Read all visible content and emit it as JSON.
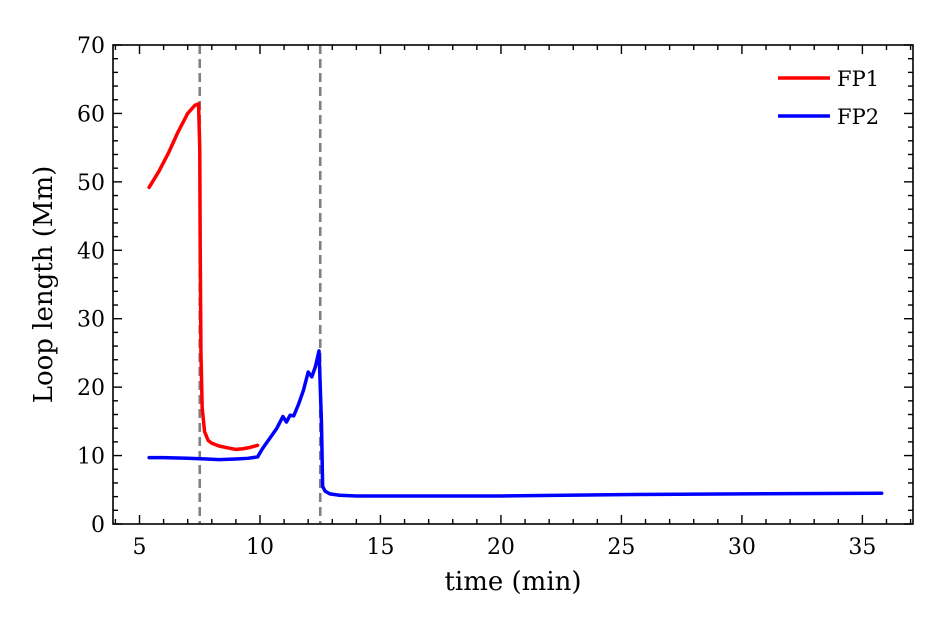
{
  "chart_data": {
    "type": "line",
    "xlabel": "time (min)",
    "ylabel": "Loop length (Mm)",
    "xlim": [
      3.9,
      37.1
    ],
    "ylim": [
      0,
      70
    ],
    "x_ticks": [
      5,
      10,
      15,
      20,
      25,
      30,
      35
    ],
    "y_ticks": [
      0,
      10,
      20,
      30,
      40,
      50,
      60,
      70
    ],
    "x_minor_step": 1,
    "y_minor_step": 2,
    "grid": false,
    "legend_position": "top-right",
    "vlines": [
      {
        "x": 7.5,
        "color": "#808080",
        "style": "dashed"
      },
      {
        "x": 12.5,
        "color": "#808080",
        "style": "dashed"
      }
    ],
    "series": [
      {
        "name": "FP1",
        "color": "#ff0000",
        "x": [
          5.4,
          5.8,
          6.2,
          6.6,
          7.0,
          7.3,
          7.45,
          7.5,
          7.52,
          7.55,
          7.6,
          7.7,
          7.85,
          8.0,
          8.3,
          8.7,
          9.0,
          9.3,
          9.6,
          9.9
        ],
        "y": [
          49.2,
          51.5,
          54.2,
          57.3,
          60.0,
          61.2,
          61.4,
          55.0,
          40.0,
          25.0,
          17.0,
          13.5,
          12.2,
          11.8,
          11.4,
          11.1,
          10.9,
          11.0,
          11.2,
          11.5
        ]
      },
      {
        "name": "FP2",
        "color": "#0000ff",
        "x": [
          5.4,
          6.0,
          7.0,
          7.8,
          8.3,
          9.0,
          9.5,
          9.9,
          10.1,
          10.4,
          10.7,
          10.95,
          11.1,
          11.25,
          11.4,
          11.6,
          11.8,
          12.0,
          12.15,
          12.3,
          12.45,
          12.55,
          12.6,
          12.7,
          12.9,
          13.3,
          14.0,
          16.0,
          20.0,
          25.0,
          30.0,
          35.8
        ],
        "y": [
          9.7,
          9.7,
          9.6,
          9.5,
          9.4,
          9.5,
          9.6,
          9.8,
          11.0,
          12.5,
          14.0,
          15.7,
          14.9,
          15.9,
          15.8,
          17.5,
          19.5,
          22.2,
          21.5,
          23.0,
          25.3,
          15.0,
          5.5,
          4.8,
          4.4,
          4.2,
          4.1,
          4.1,
          4.1,
          4.3,
          4.4,
          4.5
        ]
      }
    ]
  }
}
